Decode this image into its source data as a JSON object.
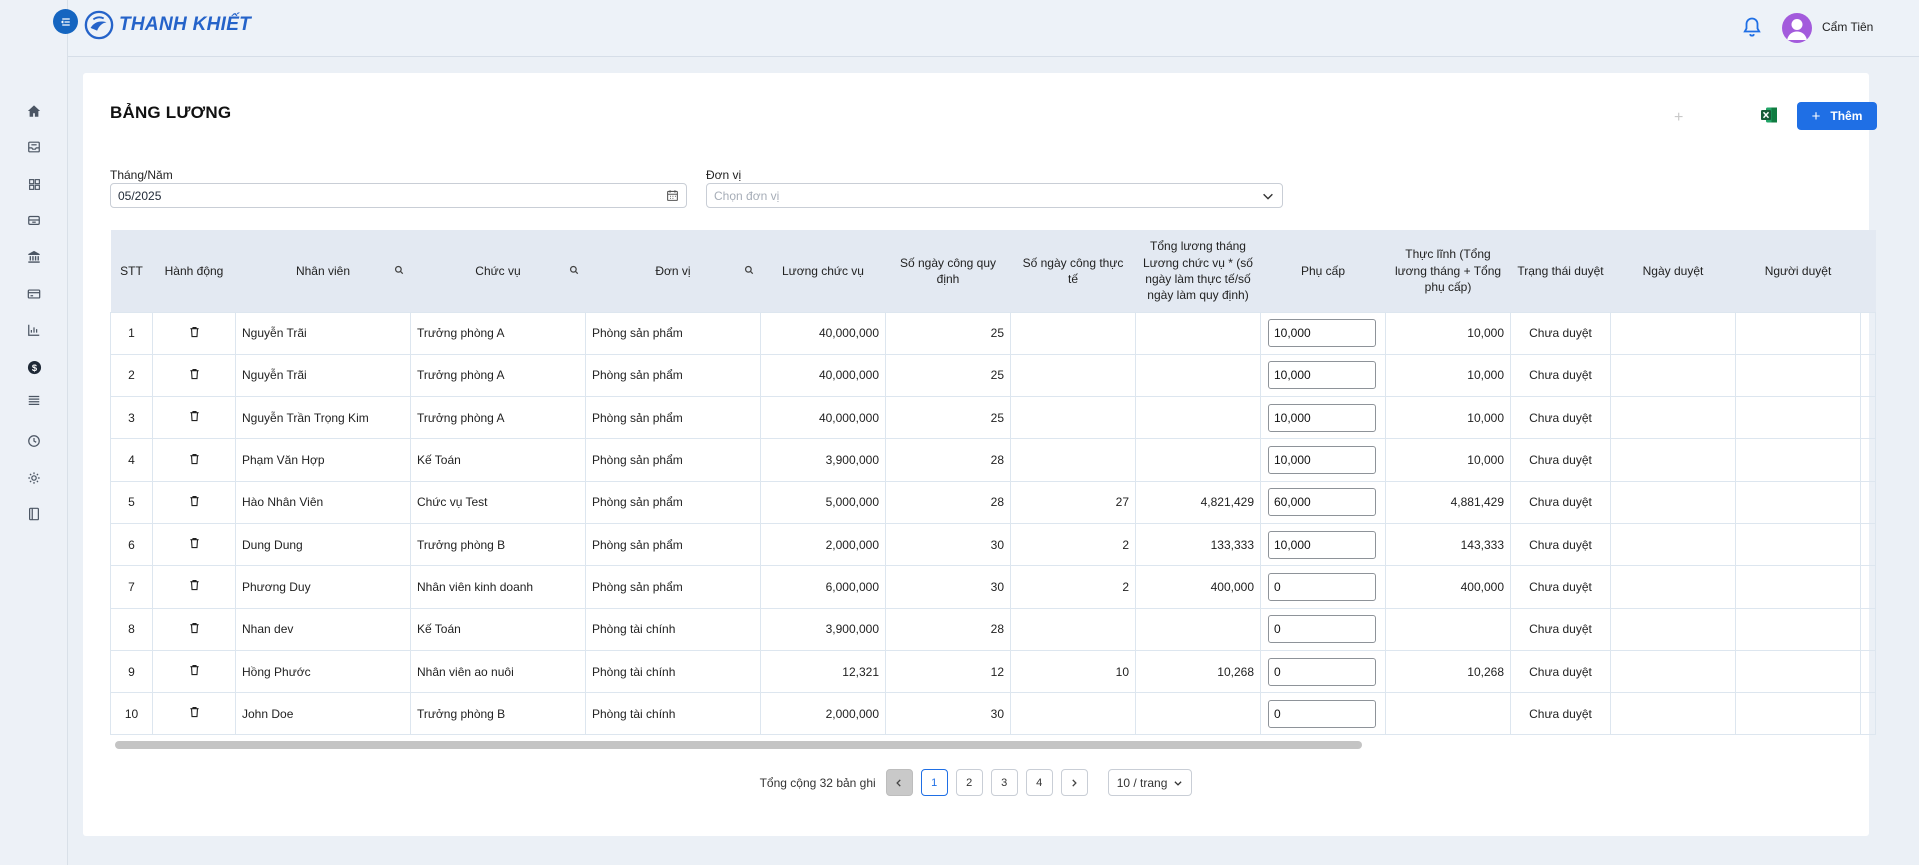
{
  "brand": {
    "name": "THANH KHIẾT",
    "color": "#2563c9"
  },
  "accent_color": "#1f6fe5",
  "user": {
    "name": "Cẩm Tiên"
  },
  "sidebar": {
    "items": [
      {
        "icon": "home-icon"
      },
      {
        "icon": "inbox-icon"
      },
      {
        "icon": "grid-icon"
      },
      {
        "icon": "box-icon"
      },
      {
        "icon": "bank-icon"
      },
      {
        "icon": "card-icon"
      },
      {
        "icon": "chart-icon"
      },
      {
        "icon": "dollar-icon",
        "active": true
      },
      {
        "icon": "layers-icon"
      },
      {
        "icon": "history-icon"
      },
      {
        "icon": "settings-icon"
      },
      {
        "icon": "book-icon"
      }
    ]
  },
  "page": {
    "title": "BẢNG LƯƠNG",
    "add_label": "Thêm"
  },
  "filters": {
    "month_label": "Tháng/Năm",
    "month_value": "05/2025",
    "unit_label": "Đơn vị",
    "unit_placeholder": "Chọn đơn vị"
  },
  "table": {
    "columns": [
      "STT",
      "Hành động",
      "Nhân viên",
      "Chức vụ",
      "Đơn vị",
      "Lương chức vụ",
      "Số ngày công quy định",
      "Số ngày công thực tế",
      "Tổng lương tháng Lương chức vụ * (số ngày làm thực tế/số ngày làm quy định)",
      "Phụ cấp",
      "Thực lĩnh (Tổng lương tháng + Tổng phụ cấp)",
      "Trạng thái duyệt",
      "Ngày duyệt",
      "Người duyệt"
    ],
    "rows": [
      {
        "stt": "1",
        "employee": "Nguyễn Trãi",
        "position": "Trưởng phòng A",
        "unit": "Phòng sản phẩm",
        "salary": "40,000,000",
        "days_required": "25",
        "days_actual": "",
        "total": "",
        "allowance": "10,000",
        "net": "10,000",
        "status": "Chưa duyệt",
        "approved_date": "",
        "approver": ""
      },
      {
        "stt": "2",
        "employee": "Nguyễn Trãi",
        "position": "Trưởng phòng A",
        "unit": "Phòng sản phẩm",
        "salary": "40,000,000",
        "days_required": "25",
        "days_actual": "",
        "total": "",
        "allowance": "10,000",
        "net": "10,000",
        "status": "Chưa duyệt",
        "approved_date": "",
        "approver": ""
      },
      {
        "stt": "3",
        "employee": "Nguyễn Trần Trọng Kim",
        "position": "Trưởng phòng A",
        "unit": "Phòng sản phẩm",
        "salary": "40,000,000",
        "days_required": "25",
        "days_actual": "",
        "total": "",
        "allowance": "10,000",
        "net": "10,000",
        "status": "Chưa duyệt",
        "approved_date": "",
        "approver": ""
      },
      {
        "stt": "4",
        "employee": "Phạm Văn Hợp",
        "position": "Kế Toán",
        "unit": "Phòng sản phẩm",
        "salary": "3,900,000",
        "days_required": "28",
        "days_actual": "",
        "total": "",
        "allowance": "10,000",
        "net": "10,000",
        "status": "Chưa duyệt",
        "approved_date": "",
        "approver": ""
      },
      {
        "stt": "5",
        "employee": "Hào Nhân Viên",
        "position": "Chức vụ Test",
        "unit": "Phòng sản phẩm",
        "salary": "5,000,000",
        "days_required": "28",
        "days_actual": "27",
        "total": "4,821,429",
        "allowance": "60,000",
        "net": "4,881,429",
        "status": "Chưa duyệt",
        "approved_date": "",
        "approver": ""
      },
      {
        "stt": "6",
        "employee": "Dung Dung",
        "position": "Trưởng phòng B",
        "unit": "Phòng sản phẩm",
        "salary": "2,000,000",
        "days_required": "30",
        "days_actual": "2",
        "total": "133,333",
        "allowance": "10,000",
        "net": "143,333",
        "status": "Chưa duyệt",
        "approved_date": "",
        "approver": ""
      },
      {
        "stt": "7",
        "employee": "Phương Duy",
        "position": "Nhân viên kinh doanh",
        "unit": "Phòng sản phẩm",
        "salary": "6,000,000",
        "days_required": "30",
        "days_actual": "2",
        "total": "400,000",
        "allowance": "0",
        "net": "400,000",
        "status": "Chưa duyệt",
        "approved_date": "",
        "approver": ""
      },
      {
        "stt": "8",
        "employee": "Nhan dev",
        "position": "Kế Toán",
        "unit": "Phòng tài chính",
        "salary": "3,900,000",
        "days_required": "28",
        "days_actual": "",
        "total": "",
        "allowance": "0",
        "net": "",
        "status": "Chưa duyệt",
        "approved_date": "",
        "approver": ""
      },
      {
        "stt": "9",
        "employee": "Hồng Phước",
        "position": "Nhân viên ao nuôi",
        "unit": "Phòng tài chính",
        "salary": "12,321",
        "days_required": "12",
        "days_actual": "10",
        "total": "10,268",
        "allowance": "0",
        "net": "10,268",
        "status": "Chưa duyệt",
        "approved_date": "",
        "approver": ""
      },
      {
        "stt": "10",
        "employee": "John Doe",
        "position": "Trưởng phòng B",
        "unit": "Phòng tài chính",
        "salary": "2,000,000",
        "days_required": "30",
        "days_actual": "",
        "total": "",
        "allowance": "0",
        "net": "",
        "status": "Chưa duyệt",
        "approved_date": "",
        "approver": ""
      }
    ]
  },
  "pagination": {
    "total_text": "Tổng cộng 32 bản ghi",
    "pages": [
      "1",
      "2",
      "3",
      "4"
    ],
    "current": "1",
    "page_size": "10 / trang"
  }
}
